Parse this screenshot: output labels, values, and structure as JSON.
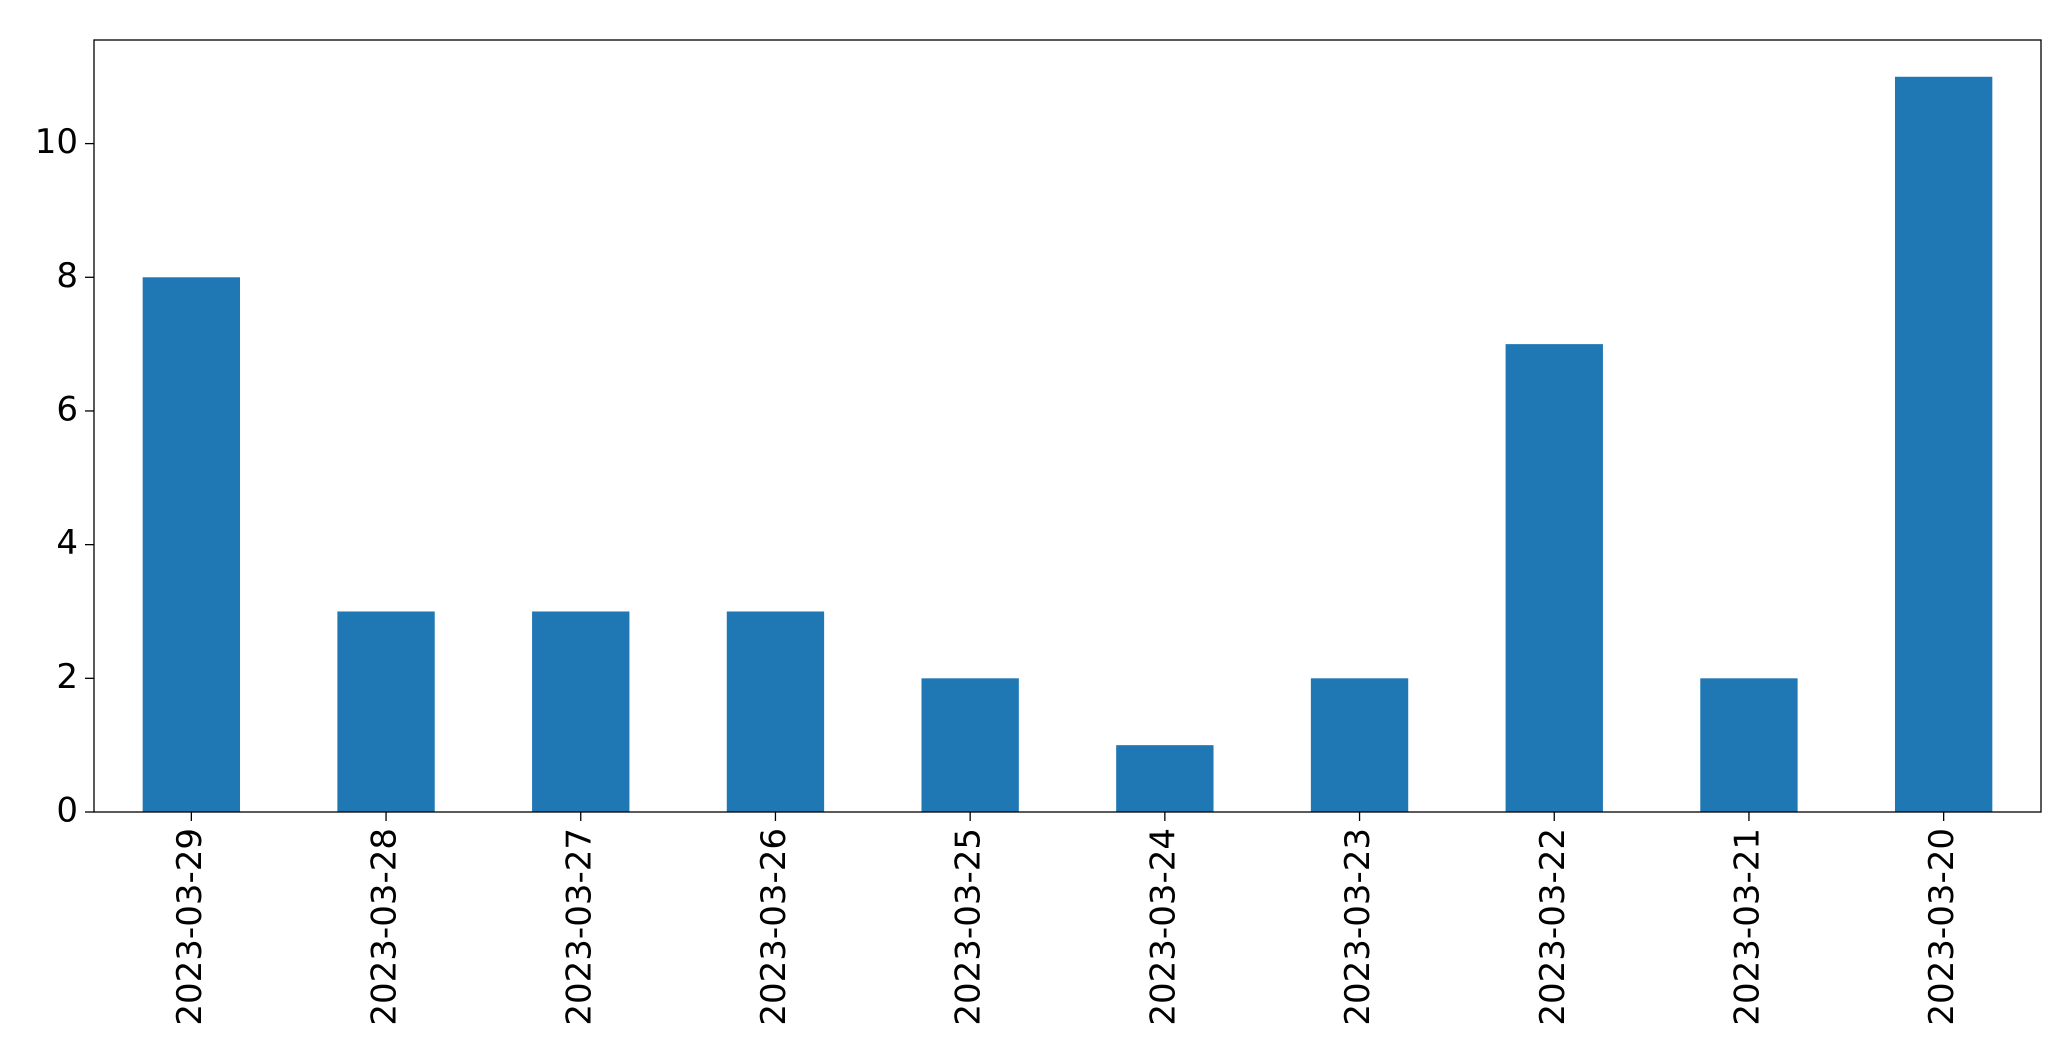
{
  "chart_data": {
    "type": "bar",
    "categories": [
      "2023-03-29",
      "2023-03-28",
      "2023-03-27",
      "2023-03-26",
      "2023-03-25",
      "2023-03-24",
      "2023-03-23",
      "2023-03-22",
      "2023-03-21",
      "2023-03-20"
    ],
    "values": [
      8,
      3,
      3,
      3,
      2,
      1,
      2,
      7,
      2,
      11
    ],
    "color": "#1f77b4",
    "ylim": [
      0,
      11.55
    ],
    "yticks": [
      0,
      2,
      4,
      6,
      8,
      10
    ],
    "grid": false
  }
}
